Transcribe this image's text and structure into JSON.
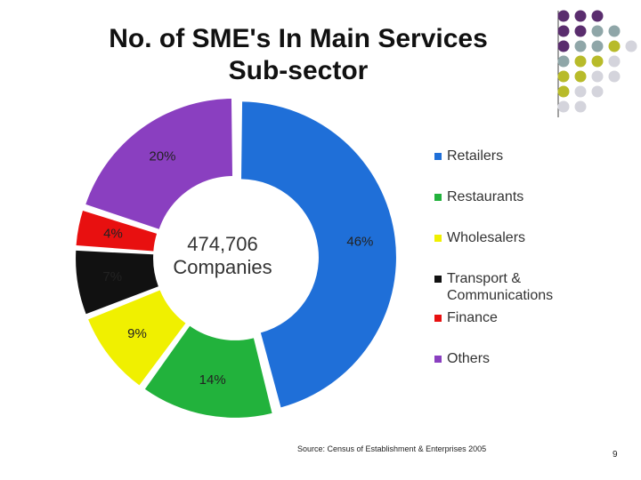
{
  "chart_data": {
    "type": "pie",
    "title": "No. of SME's In Main Services Sub-sector",
    "center_label": "474,706 Companies",
    "categories": [
      "Retailers",
      "Restaurants",
      "Wholesalers",
      "Transport & Communications",
      "Finance",
      "Others"
    ],
    "values": [
      46,
      14,
      9,
      7,
      4,
      20
    ],
    "value_labels": [
      "46%",
      "14%",
      "9%",
      "7%",
      "4%",
      "20%"
    ],
    "colors": [
      "#1f6fd8",
      "#22b23c",
      "#f0f000",
      "#111111",
      "#e81010",
      "#8a3fc0"
    ],
    "legend": "right",
    "source": "Source: Census of Establishment & Enterprises 2005",
    "page_number": "9"
  }
}
